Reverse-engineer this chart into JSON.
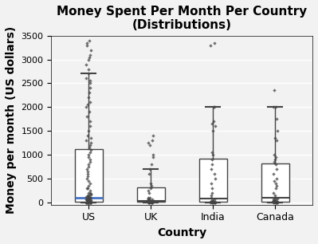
{
  "title": "Money Spent Per Month Per Country\n(Distributions)",
  "xlabel": "Country",
  "ylabel": "Money per month (US dollars)",
  "categories": [
    "US",
    "UK",
    "India",
    "Canada"
  ],
  "ylim": [
    -50,
    3500
  ],
  "yticks": [
    0,
    500,
    1000,
    1500,
    2000,
    2500,
    3000,
    3500
  ],
  "background_color": "#f2f2f2",
  "scatter_color": "#444444",
  "box_facecolor": "white",
  "box_edgecolor": "#444444",
  "median_color_us": "#4472c4",
  "median_color_others": "#444444",
  "title_fontsize": 11,
  "label_fontsize": 10,
  "data_us": [
    0,
    0,
    0,
    0,
    0,
    0,
    0,
    0,
    0,
    0,
    0,
    0,
    0,
    0,
    0,
    0,
    0,
    0,
    0,
    0,
    5,
    5,
    5,
    5,
    5,
    10,
    10,
    10,
    10,
    10,
    10,
    15,
    15,
    15,
    20,
    20,
    20,
    20,
    20,
    25,
    25,
    25,
    30,
    30,
    30,
    35,
    40,
    40,
    40,
    50,
    50,
    50,
    50,
    60,
    60,
    70,
    70,
    80,
    90,
    100,
    100,
    110,
    120,
    130,
    150,
    150,
    160,
    180,
    200,
    200,
    250,
    300,
    300,
    350,
    400,
    450,
    500,
    550,
    600,
    650,
    700,
    750,
    800,
    850,
    900,
    950,
    1000,
    1050,
    1100,
    1150,
    1200,
    1250,
    1300,
    1350,
    1400,
    1500,
    1600,
    1700,
    1800,
    1900,
    2000,
    2050,
    2100,
    2200,
    2300,
    2400,
    2500,
    2550,
    2600,
    2700,
    2800,
    2900,
    3000,
    3050,
    3100,
    3200,
    3300,
    3350,
    3400
  ],
  "data_uk": [
    0,
    0,
    0,
    0,
    0,
    0,
    0,
    0,
    0,
    5,
    5,
    5,
    10,
    10,
    10,
    15,
    15,
    20,
    20,
    25,
    30,
    30,
    35,
    40,
    50,
    60,
    70,
    80,
    90,
    100,
    200,
    250,
    300,
    350,
    400,
    600,
    700,
    800,
    950,
    1000,
    1200,
    1250,
    1300,
    1400
  ],
  "data_india": [
    0,
    0,
    0,
    0,
    0,
    0,
    0,
    0,
    5,
    5,
    5,
    10,
    10,
    10,
    15,
    15,
    20,
    30,
    50,
    70,
    100,
    150,
    200,
    300,
    400,
    500,
    600,
    700,
    800,
    900,
    1000,
    1050,
    1500,
    1600,
    1650,
    1700,
    2000,
    2010,
    3300,
    3350
  ],
  "data_canada": [
    0,
    0,
    0,
    0,
    0,
    0,
    0,
    0,
    5,
    5,
    5,
    10,
    10,
    15,
    20,
    20,
    30,
    40,
    50,
    60,
    70,
    80,
    100,
    150,
    200,
    300,
    350,
    400,
    450,
    500,
    600,
    700,
    800,
    850,
    900,
    950,
    1000,
    1300,
    1350,
    1500,
    1750,
    2000,
    2010,
    2350
  ]
}
